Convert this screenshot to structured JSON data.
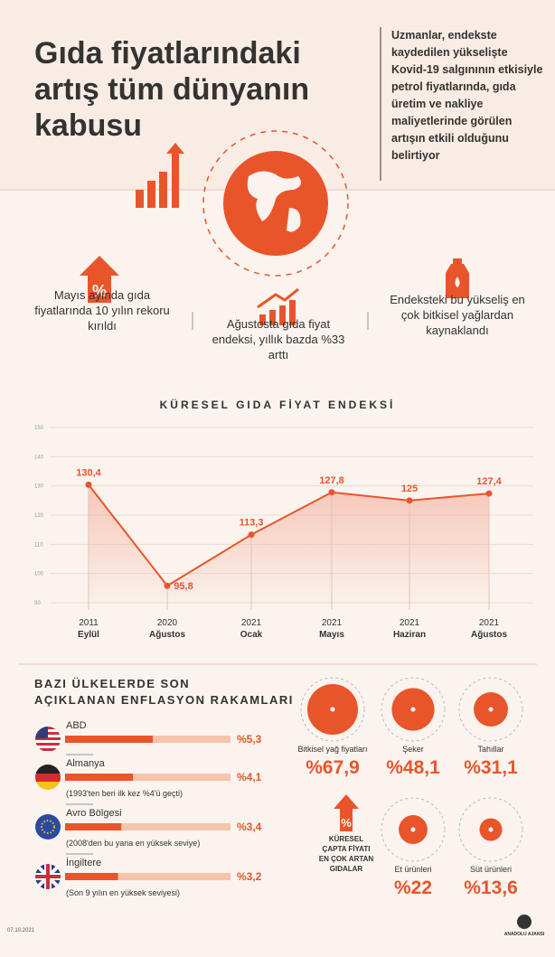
{
  "header": {
    "title_lines": [
      "Gıda fiyatlarındaki",
      "artış tüm dünyanın",
      "kabusu"
    ],
    "summary": "Uzmanlar, endekste kaydedilen yükselişte Kovid-19 salgınının etkisiyle petrol fiyatlarında, gıda üretim ve nakliye maliyetlerinde görülen artışın etkili olduğunu belirtiyor"
  },
  "facts": [
    "Mayıs ayında gıda fiyatlarında 10 yılın rekoru kırıldı",
    "Ağustosta gıda fiyat endeksi, yıllık bazda %33 arttı",
    "Endeksteki bu yükseliş en çok bitkisel yağlardan kaynaklandı"
  ],
  "chart_data": [
    {
      "type": "line",
      "title": "KÜRESEL GIDA FİYAT ENDEKSİ",
      "categories": [
        [
          "2011",
          "Eylül"
        ],
        [
          "2020",
          "Ağustos"
        ],
        [
          "2021",
          "Ocak"
        ],
        [
          "2021",
          "Mayıs"
        ],
        [
          "2021",
          "Haziran"
        ],
        [
          "2021",
          "Ağustos"
        ]
      ],
      "values": [
        130.4,
        95.8,
        113.3,
        127.8,
        125,
        127.4
      ],
      "value_labels": [
        "130,4",
        "95,8",
        "113,3",
        "127,8",
        "125",
        "127,4"
      ],
      "color": "#e8552b",
      "ylim": [
        90,
        150
      ],
      "yticks": [
        90,
        100,
        110,
        120,
        130,
        140,
        150
      ],
      "grid": true
    },
    {
      "type": "hbar",
      "title_lines": [
        "BAZI ÜLKELERDE SON",
        "AÇIKLANAN ENFLASYON RAKAMLARI"
      ],
      "categories": [
        "ABD",
        "Almanya",
        "Avro Bölgesi",
        "İngiltere"
      ],
      "values": [
        5.3,
        4.1,
        3.4,
        3.2
      ],
      "value_labels": [
        "%5,3",
        "%4,1",
        "%3,4",
        "%3,2"
      ],
      "notes": [
        null,
        "(1993'ten beri ilk kez %4'ü geçti)",
        "(2008'den bu yana en yüksek seviye)",
        "(Son 9 yılın en yüksek seviyesi)"
      ],
      "color": "#e8552b",
      "track_color": "#f6c3ab",
      "xlim": [
        0,
        10
      ]
    },
    {
      "type": "bubble",
      "title_lines": [
        "KÜRESEL",
        "ÇAPTA FİYATI",
        "EN ÇOK ARTAN",
        "GIDALAR"
      ],
      "categories": [
        "Bitkisel yağ fiyatları",
        "Şeker",
        "Tahıllar",
        "Et ürünleri",
        "Süt ürünleri"
      ],
      "values": [
        67.9,
        48.1,
        31.1,
        22,
        13.6
      ],
      "value_labels": [
        "%67,9",
        "%48,1",
        "%31,1",
        "%22",
        "%13,6"
      ],
      "color": "#e8552b"
    }
  ],
  "footer": {
    "date": "07.10.2021",
    "logo": "ANADOLU AJANSI"
  }
}
